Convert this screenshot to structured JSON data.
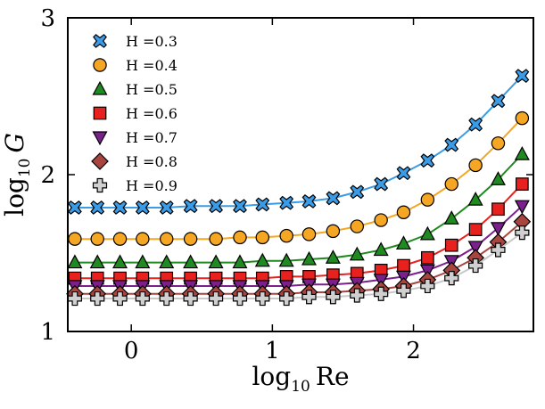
{
  "chart_data": {
    "type": "line",
    "title": "",
    "xlabel": "log₁₀ Re",
    "xlabel_main": "log",
    "xlabel_sub": "10",
    "xlabel_var": "Re",
    "ylabel": "log₁₀ G",
    "ylabel_main": "log",
    "ylabel_sub": "10",
    "ylabel_var": "G",
    "xlim": [
      -0.45,
      2.85
    ],
    "ylim": [
      1,
      3
    ],
    "xticks": [
      0,
      1,
      2
    ],
    "xtick_labels": [
      "0",
      "1",
      "2"
    ],
    "yticks": [
      1,
      2,
      3
    ],
    "ytick_labels": [
      "1",
      "2",
      "3"
    ],
    "grid": false,
    "legend_position": "top-left",
    "x": [
      -0.4,
      -0.24,
      -0.08,
      0.08,
      0.25,
      0.42,
      0.6,
      0.77,
      0.93,
      1.1,
      1.26,
      1.43,
      1.6,
      1.77,
      1.93,
      2.1,
      2.27,
      2.44,
      2.6,
      2.77
    ],
    "series": [
      {
        "name": "H =0.3",
        "marker": "x",
        "color": "#3a9be6",
        "line_color": "#3a9be6",
        "values": [
          1.79,
          1.79,
          1.79,
          1.79,
          1.79,
          1.8,
          1.8,
          1.8,
          1.81,
          1.82,
          1.83,
          1.85,
          1.89,
          1.94,
          2.01,
          2.09,
          2.19,
          2.32,
          2.47,
          2.63
        ]
      },
      {
        "name": "H =0.4",
        "marker": "circle",
        "color": "#f5a623",
        "line_color": "#f5a623",
        "values": [
          1.59,
          1.59,
          1.59,
          1.59,
          1.59,
          1.59,
          1.59,
          1.6,
          1.6,
          1.61,
          1.62,
          1.64,
          1.67,
          1.71,
          1.76,
          1.84,
          1.94,
          2.06,
          2.2,
          2.36
        ]
      },
      {
        "name": "H =0.5",
        "marker": "triangle-up",
        "color": "#1f8a1f",
        "line_color": "#1f8a1f",
        "values": [
          1.44,
          1.44,
          1.44,
          1.44,
          1.44,
          1.44,
          1.44,
          1.44,
          1.45,
          1.45,
          1.46,
          1.47,
          1.49,
          1.52,
          1.56,
          1.62,
          1.72,
          1.84,
          1.97,
          2.13
        ]
      },
      {
        "name": "H =0.6",
        "marker": "square",
        "color": "#e8201e",
        "line_color": "#e8201e",
        "values": [
          1.34,
          1.34,
          1.34,
          1.34,
          1.34,
          1.34,
          1.34,
          1.34,
          1.34,
          1.35,
          1.35,
          1.36,
          1.37,
          1.39,
          1.42,
          1.47,
          1.55,
          1.65,
          1.78,
          1.94
        ]
      },
      {
        "name": "H =0.7",
        "marker": "triangle-down",
        "color": "#7b1f8c",
        "line_color": "#7b1f8c",
        "values": [
          1.29,
          1.29,
          1.29,
          1.29,
          1.29,
          1.29,
          1.29,
          1.29,
          1.29,
          1.29,
          1.3,
          1.3,
          1.31,
          1.33,
          1.35,
          1.39,
          1.45,
          1.54,
          1.66,
          1.8
        ]
      },
      {
        "name": "H =0.8",
        "marker": "diamond",
        "color": "#a8453f",
        "line_color": "#a8453f",
        "values": [
          1.24,
          1.24,
          1.24,
          1.24,
          1.24,
          1.24,
          1.24,
          1.24,
          1.24,
          1.24,
          1.25,
          1.25,
          1.26,
          1.27,
          1.29,
          1.33,
          1.39,
          1.47,
          1.57,
          1.7
        ]
      },
      {
        "name": "H =0.9",
        "marker": "plus",
        "color": "#d0d0d0",
        "line_color": "#c8c8c8",
        "values": [
          1.21,
          1.21,
          1.21,
          1.21,
          1.21,
          1.21,
          1.21,
          1.21,
          1.21,
          1.21,
          1.22,
          1.22,
          1.23,
          1.24,
          1.26,
          1.29,
          1.34,
          1.42,
          1.52,
          1.63
        ]
      }
    ]
  }
}
